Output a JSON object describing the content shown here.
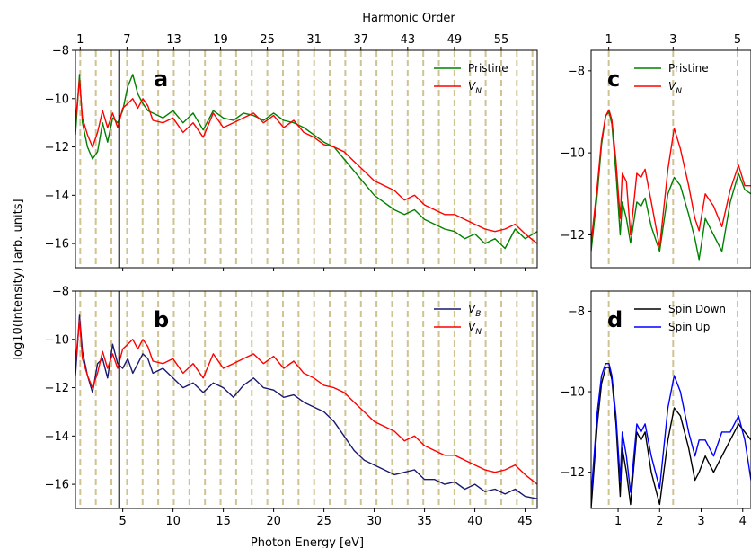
{
  "figure": {
    "ylabel": "log10(Intensity) [arb. units]",
    "xlabel": "Photon Energy [eV]",
    "top_xlabel": "Harmonic Order"
  },
  "chart_data": [
    {
      "id": "a",
      "type": "line",
      "panel_label": "a",
      "xlim": [
        0.3,
        46.2
      ],
      "ylim": [
        -17,
        -8
      ],
      "yticks": [
        -16,
        -14,
        -12,
        -10,
        -8
      ],
      "xticks": [
        5,
        10,
        15,
        20,
        25,
        30,
        35,
        40,
        45
      ],
      "xticks_shown": false,
      "top_axis": {
        "label": "Harmonic Order",
        "ticks": [
          1,
          7,
          13,
          19,
          25,
          31,
          37,
          43,
          49,
          55
        ],
        "energy_per_order": 0.775
      },
      "harmonic_lines_every_eV": 1.55,
      "harmonic_lines_start_eV": 0.775,
      "vertical_marker_x": 4.65,
      "grid": false,
      "legend": "top-right",
      "series": [
        {
          "name": "Pristine",
          "color": "#008000",
          "x": [
            0.3,
            0.7,
            1.0,
            1.5,
            2.0,
            2.5,
            3.0,
            3.5,
            4.0,
            4.5,
            5.0,
            5.5,
            6.0,
            6.5,
            7.0,
            7.5,
            8.0,
            9.0,
            10.0,
            11.0,
            12.0,
            13.0,
            14.0,
            15.0,
            16.0,
            17.0,
            18.0,
            19.0,
            20.0,
            21.0,
            22.0,
            23.0,
            24.0,
            25.0,
            26.0,
            27.0,
            28.0,
            29.0,
            30.0,
            31.0,
            32.0,
            33.0,
            34.0,
            35.0,
            36.0,
            37.0,
            38.0,
            39.0,
            40.0,
            41.0,
            42.0,
            43.0,
            44.0,
            45.0,
            46.2
          ],
          "y": [
            -11.5,
            -9.0,
            -11.0,
            -12.0,
            -12.5,
            -12.2,
            -11.0,
            -11.8,
            -10.8,
            -11.0,
            -10.5,
            -9.5,
            -9.0,
            -9.8,
            -10.2,
            -10.5,
            -10.6,
            -10.8,
            -10.5,
            -11.0,
            -10.6,
            -11.3,
            -10.5,
            -10.8,
            -10.9,
            -10.6,
            -10.7,
            -10.9,
            -10.6,
            -10.9,
            -11.0,
            -11.2,
            -11.5,
            -11.8,
            -12.0,
            -12.5,
            -13.0,
            -13.5,
            -14.0,
            -14.3,
            -14.6,
            -14.8,
            -14.6,
            -15.0,
            -15.2,
            -15.4,
            -15.5,
            -15.8,
            -15.6,
            -16.0,
            -15.8,
            -16.2,
            -15.4,
            -15.8,
            -15.5
          ]
        },
        {
          "name": "V_N",
          "color": "#ff0000",
          "x": [
            0.3,
            0.7,
            1.0,
            1.5,
            2.0,
            2.5,
            3.0,
            3.5,
            4.0,
            4.5,
            5.0,
            5.5,
            6.0,
            6.5,
            7.0,
            7.5,
            8.0,
            9.0,
            10.0,
            11.0,
            12.0,
            13.0,
            14.0,
            15.0,
            16.0,
            17.0,
            18.0,
            19.0,
            20.0,
            21.0,
            22.0,
            23.0,
            24.0,
            25.0,
            26.0,
            27.0,
            28.0,
            29.0,
            30.0,
            31.0,
            32.0,
            33.0,
            34.0,
            35.0,
            36.0,
            37.0,
            38.0,
            39.0,
            40.0,
            41.0,
            42.0,
            43.0,
            44.0,
            45.0,
            46.2
          ],
          "y": [
            -11.0,
            -9.2,
            -10.8,
            -11.5,
            -12.0,
            -11.4,
            -10.5,
            -11.2,
            -10.6,
            -11.2,
            -10.4,
            -10.2,
            -10.0,
            -10.4,
            -10.0,
            -10.3,
            -10.9,
            -11.0,
            -10.8,
            -11.4,
            -11.0,
            -11.6,
            -10.6,
            -11.2,
            -11.0,
            -10.8,
            -10.6,
            -11.0,
            -10.7,
            -11.2,
            -10.9,
            -11.4,
            -11.6,
            -11.9,
            -12.0,
            -12.2,
            -12.6,
            -13.0,
            -13.4,
            -13.6,
            -13.8,
            -14.2,
            -14.0,
            -14.4,
            -14.6,
            -14.8,
            -14.8,
            -15.0,
            -15.2,
            -15.4,
            -15.5,
            -15.4,
            -15.2,
            -15.6,
            -16.0
          ]
        }
      ]
    },
    {
      "id": "b",
      "type": "line",
      "panel_label": "b",
      "xlim": [
        0.3,
        46.2
      ],
      "ylim": [
        -17,
        -8
      ],
      "yticks": [
        -16,
        -14,
        -12,
        -10,
        -8
      ],
      "xticks": [
        5,
        10,
        15,
        20,
        25,
        30,
        35,
        40,
        45
      ],
      "xticks_shown": true,
      "harmonic_lines_every_eV": 1.55,
      "harmonic_lines_start_eV": 0.775,
      "vertical_marker_x": 4.65,
      "grid": false,
      "legend": "top-right",
      "series": [
        {
          "name": "V_B",
          "color": "#191970",
          "x": [
            0.3,
            0.7,
            1.0,
            1.5,
            2.0,
            2.5,
            3.0,
            3.5,
            4.0,
            4.5,
            5.0,
            5.5,
            6.0,
            6.5,
            7.0,
            7.5,
            8.0,
            9.0,
            10.0,
            11.0,
            12.0,
            13.0,
            14.0,
            15.0,
            16.0,
            17.0,
            18.0,
            19.0,
            20.0,
            21.0,
            22.0,
            23.0,
            24.0,
            25.0,
            26.0,
            27.0,
            28.0,
            29.0,
            30.0,
            31.0,
            32.0,
            33.0,
            34.0,
            35.0,
            36.0,
            37.0,
            38.0,
            39.0,
            40.0,
            41.0,
            42.0,
            43.0,
            44.0,
            45.0,
            46.2
          ],
          "y": [
            -11.5,
            -9.0,
            -10.5,
            -11.5,
            -12.2,
            -11.0,
            -10.8,
            -11.6,
            -10.2,
            -11.0,
            -11.2,
            -10.8,
            -11.4,
            -11.0,
            -10.6,
            -10.8,
            -11.4,
            -11.2,
            -11.6,
            -12.0,
            -11.8,
            -12.2,
            -11.8,
            -12.0,
            -12.4,
            -11.9,
            -11.6,
            -12.0,
            -12.1,
            -12.4,
            -12.3,
            -12.6,
            -12.8,
            -13.0,
            -13.4,
            -14.0,
            -14.6,
            -15.0,
            -15.2,
            -15.4,
            -15.6,
            -15.5,
            -15.4,
            -15.8,
            -15.8,
            -16.0,
            -15.9,
            -16.2,
            -16.0,
            -16.3,
            -16.2,
            -16.4,
            -16.2,
            -16.5,
            -16.6
          ]
        },
        {
          "name": "V_N",
          "color": "#ff0000",
          "x": [
            0.3,
            0.7,
            1.0,
            1.5,
            2.0,
            2.5,
            3.0,
            3.5,
            4.0,
            4.5,
            5.0,
            5.5,
            6.0,
            6.5,
            7.0,
            7.5,
            8.0,
            9.0,
            10.0,
            11.0,
            12.0,
            13.0,
            14.0,
            15.0,
            16.0,
            17.0,
            18.0,
            19.0,
            20.0,
            21.0,
            22.0,
            23.0,
            24.0,
            25.0,
            26.0,
            27.0,
            28.0,
            29.0,
            30.0,
            31.0,
            32.0,
            33.0,
            34.0,
            35.0,
            36.0,
            37.0,
            38.0,
            39.0,
            40.0,
            41.0,
            42.0,
            43.0,
            44.0,
            45.0,
            46.2
          ],
          "y": [
            -11.0,
            -9.2,
            -10.8,
            -11.5,
            -12.0,
            -11.4,
            -10.5,
            -11.2,
            -10.6,
            -11.2,
            -10.4,
            -10.2,
            -10.0,
            -10.4,
            -10.0,
            -10.3,
            -10.9,
            -11.0,
            -10.8,
            -11.4,
            -11.0,
            -11.6,
            -10.6,
            -11.2,
            -11.0,
            -10.8,
            -10.6,
            -11.0,
            -10.7,
            -11.2,
            -10.9,
            -11.4,
            -11.6,
            -11.9,
            -12.0,
            -12.2,
            -12.6,
            -13.0,
            -13.4,
            -13.6,
            -13.8,
            -14.2,
            -14.0,
            -14.4,
            -14.6,
            -14.8,
            -14.8,
            -15.0,
            -15.2,
            -15.4,
            -15.5,
            -15.4,
            -15.2,
            -15.6,
            -16.0
          ]
        }
      ]
    },
    {
      "id": "c",
      "type": "line",
      "panel_label": "c",
      "xlim": [
        0.35,
        4.2
      ],
      "ylim": [
        -12.8,
        -7.5
      ],
      "yticks": [
        -12,
        -10,
        -8
      ],
      "xticks_shown": false,
      "top_axis": {
        "ticks": [
          1,
          3,
          5
        ],
        "energy_per_order": 0.775
      },
      "harmonic_lines_x": [
        0.775,
        2.325,
        3.875
      ],
      "grid": false,
      "legend": "top-right",
      "series": [
        {
          "name": "Pristine",
          "color": "#008000",
          "x": [
            0.35,
            0.5,
            0.6,
            0.7,
            0.78,
            0.85,
            0.95,
            1.05,
            1.1,
            1.2,
            1.3,
            1.45,
            1.55,
            1.65,
            1.8,
            2.0,
            2.2,
            2.35,
            2.5,
            2.7,
            2.85,
            2.95,
            3.1,
            3.3,
            3.5,
            3.7,
            3.9,
            4.05,
            4.2
          ],
          "y": [
            -12.4,
            -11.0,
            -9.8,
            -9.1,
            -9.0,
            -9.3,
            -10.5,
            -12.0,
            -11.2,
            -11.6,
            -12.2,
            -11.2,
            -11.3,
            -11.1,
            -11.8,
            -12.4,
            -11.0,
            -10.6,
            -10.8,
            -11.5,
            -12.1,
            -12.6,
            -11.6,
            -12.0,
            -12.4,
            -11.2,
            -10.5,
            -10.9,
            -11.0
          ]
        },
        {
          "name": "V_N",
          "color": "#ff0000",
          "x": [
            0.35,
            0.5,
            0.6,
            0.7,
            0.78,
            0.85,
            0.95,
            1.05,
            1.1,
            1.2,
            1.3,
            1.45,
            1.55,
            1.65,
            1.8,
            2.0,
            2.2,
            2.35,
            2.5,
            2.7,
            2.85,
            2.95,
            3.1,
            3.3,
            3.5,
            3.7,
            3.9,
            4.05,
            4.2
          ],
          "y": [
            -12.2,
            -10.8,
            -9.7,
            -9.1,
            -8.95,
            -9.2,
            -10.2,
            -11.6,
            -10.5,
            -10.7,
            -12.0,
            -10.5,
            -10.6,
            -10.4,
            -11.2,
            -12.3,
            -10.4,
            -9.4,
            -9.9,
            -10.8,
            -11.6,
            -11.9,
            -11.0,
            -11.3,
            -11.8,
            -10.9,
            -10.3,
            -10.8,
            -10.8
          ]
        }
      ]
    },
    {
      "id": "d",
      "type": "line",
      "panel_label": "d",
      "xlim": [
        0.35,
        4.2
      ],
      "ylim": [
        -12.9,
        -7.5
      ],
      "yticks": [
        -12,
        -10,
        -8
      ],
      "xticks": [
        1,
        2,
        3,
        4
      ],
      "xticks_shown": true,
      "harmonic_lines_x": [
        0.775,
        2.325,
        3.875
      ],
      "grid": false,
      "legend": "top-right",
      "series": [
        {
          "name": "Spin Down",
          "color": "#000000",
          "x": [
            0.35,
            0.5,
            0.6,
            0.7,
            0.78,
            0.85,
            0.95,
            1.05,
            1.1,
            1.2,
            1.3,
            1.45,
            1.55,
            1.65,
            1.8,
            2.0,
            2.2,
            2.35,
            2.5,
            2.7,
            2.85,
            2.95,
            3.1,
            3.3,
            3.5,
            3.7,
            3.9,
            4.05,
            4.2
          ],
          "y": [
            -12.9,
            -10.8,
            -9.8,
            -9.4,
            -9.4,
            -9.7,
            -10.8,
            -12.6,
            -11.4,
            -12.0,
            -12.8,
            -11.0,
            -11.2,
            -11.0,
            -12.0,
            -12.8,
            -11.2,
            -10.4,
            -10.6,
            -11.4,
            -12.2,
            -12.0,
            -11.6,
            -12.0,
            -11.6,
            -11.2,
            -10.8,
            -11.0,
            -11.2
          ]
        },
        {
          "name": "Spin Up",
          "color": "#0000ff",
          "x": [
            0.35,
            0.5,
            0.6,
            0.7,
            0.78,
            0.85,
            0.95,
            1.05,
            1.1,
            1.2,
            1.3,
            1.45,
            1.55,
            1.65,
            1.8,
            2.0,
            2.2,
            2.35,
            2.5,
            2.7,
            2.85,
            2.95,
            3.1,
            3.3,
            3.5,
            3.7,
            3.9,
            4.05,
            4.2
          ],
          "y": [
            -12.6,
            -10.5,
            -9.6,
            -9.3,
            -9.3,
            -9.6,
            -10.6,
            -12.2,
            -11.0,
            -11.6,
            -12.5,
            -10.8,
            -11.0,
            -10.8,
            -11.6,
            -12.4,
            -10.4,
            -9.6,
            -10.0,
            -11.0,
            -11.6,
            -11.2,
            -11.2,
            -11.6,
            -11.0,
            -11.0,
            -10.6,
            -11.2,
            -12.2
          ]
        }
      ]
    }
  ]
}
